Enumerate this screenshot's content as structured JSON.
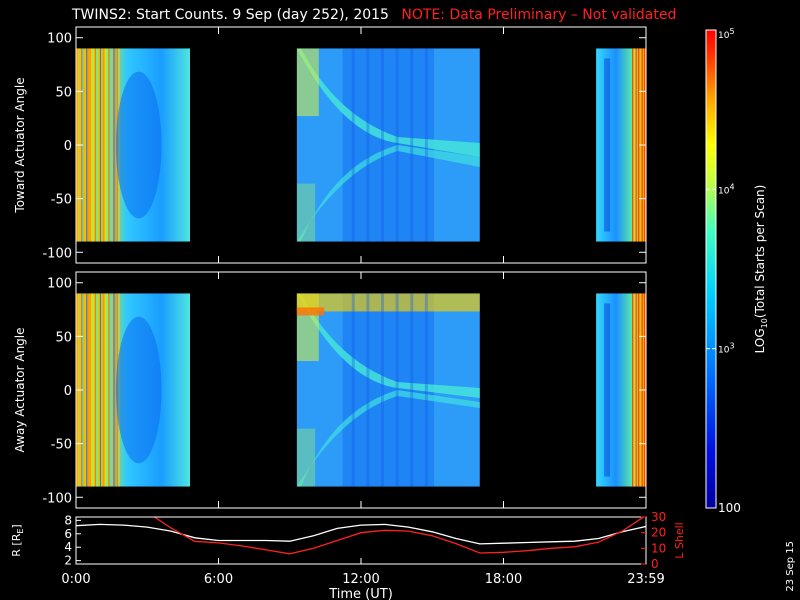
{
  "header": {
    "title": "TWINS2: Start Counts.  9 Sep (day 252), 2015",
    "note": "NOTE: Data Preliminary – Not validated"
  },
  "side_date": "23 Sep 15",
  "colors": {
    "note": "#ff2020",
    "lshell": "#ff2020",
    "r": "#ffffff",
    "background": "#000000"
  },
  "chart_data": [
    {
      "type": "heatmap",
      "panel": "top",
      "ylabel": "Toward Actuator Angle",
      "ylim": [
        -110,
        110
      ],
      "yticks": [
        100,
        50,
        0,
        -50,
        -100
      ],
      "xlim": [
        0,
        24
      ],
      "data_y_range": [
        -90,
        90
      ],
      "data_segments": [
        [
          0,
          4.8
        ],
        [
          9.3,
          17.0
        ],
        [
          21.9,
          24.0
        ]
      ],
      "color_scale": "log",
      "clim": [
        100,
        100000
      ]
    },
    {
      "type": "heatmap",
      "panel": "bottom",
      "ylabel": "Away Actuator Angle",
      "ylim": [
        -110,
        110
      ],
      "yticks": [
        100,
        50,
        0,
        -50,
        -100
      ],
      "xlim": [
        0,
        24
      ],
      "data_y_range": [
        -90,
        90
      ],
      "data_segments": [
        [
          0,
          4.8
        ],
        [
          9.3,
          17.0
        ],
        [
          21.9,
          24.0
        ]
      ],
      "color_scale": "log",
      "clim": [
        100,
        100000
      ]
    },
    {
      "type": "line",
      "panel": "ephemeris",
      "xlabel": "Time (UT)",
      "xticks": [
        "0:00",
        "6:00",
        "12:00",
        "18:00",
        "23:59"
      ],
      "xlim": [
        0,
        24
      ],
      "left_axis": {
        "label": "R [R",
        "label_sub": "E",
        "label_end": "]",
        "ylim": [
          1.5,
          8.5
        ],
        "ticks": [
          "8",
          "6",
          "4",
          "2"
        ]
      },
      "right_axis": {
        "label": "L Shell",
        "ylim": [
          0,
          30
        ],
        "ticks": [
          "30",
          "20",
          "10",
          "0"
        ]
      },
      "series": [
        {
          "name": "R",
          "axis": "left",
          "x": [
            0,
            1,
            2,
            3,
            4,
            5,
            6,
            7,
            8,
            9,
            10,
            11,
            12,
            13,
            14,
            15,
            16,
            17,
            18,
            19,
            20,
            21,
            22,
            23,
            24
          ],
          "values": [
            7.2,
            7.4,
            7.3,
            7.0,
            6.4,
            5.4,
            5.0,
            5.0,
            5.0,
            4.9,
            5.7,
            6.8,
            7.3,
            7.4,
            7.0,
            6.3,
            5.3,
            4.5,
            4.6,
            4.7,
            4.8,
            4.9,
            5.3,
            6.3,
            7.1
          ]
        },
        {
          "name": "L Shell",
          "axis": "right",
          "x": [
            3.3,
            4,
            5,
            6,
            7,
            8,
            9,
            10,
            11,
            12,
            13,
            14,
            15,
            16,
            17,
            18,
            19,
            20,
            21,
            22,
            23,
            24
          ],
          "values": [
            30,
            23,
            14.5,
            13.5,
            11.5,
            9,
            6.5,
            10,
            15,
            20,
            21.5,
            21,
            18,
            13,
            7,
            7.5,
            8.5,
            10,
            11,
            14,
            21,
            31
          ]
        }
      ]
    }
  ],
  "colorbar": {
    "label": "LOG",
    "label_sub": "10",
    "label_rest": "(Total Starts per Scan)",
    "ticks": [
      {
        "value": 100000,
        "base": "10",
        "exp": "5"
      },
      {
        "value": 10000,
        "base": "10",
        "exp": "4"
      },
      {
        "value": 1000,
        "base": "10",
        "exp": "3"
      },
      {
        "value": 100,
        "base": "100",
        "exp": ""
      }
    ]
  }
}
